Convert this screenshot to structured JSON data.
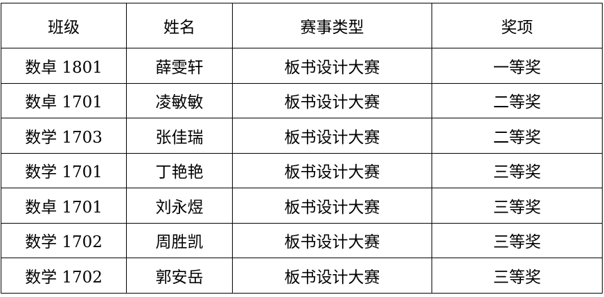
{
  "table": {
    "headers": [
      "班级",
      "姓名",
      "赛事类型",
      "奖项"
    ],
    "rows": [
      [
        "数卓 1801",
        "薛雯轩",
        "板书设计大赛",
        "一等奖"
      ],
      [
        "数卓 1701",
        "凌敏敏",
        "板书设计大赛",
        "二等奖"
      ],
      [
        "数学 1703",
        "张佳瑞",
        "板书设计大赛",
        "二等奖"
      ],
      [
        "数学 1701",
        "丁艳艳",
        "板书设计大赛",
        "三等奖"
      ],
      [
        "数卓 1701",
        "刘永煜",
        "板书设计大赛",
        "三等奖"
      ],
      [
        "数学 1702",
        "周胜凯",
        "板书设计大赛",
        "三等奖"
      ],
      [
        "数学 1702",
        "郭安岳",
        "板书设计大赛",
        "三等奖"
      ]
    ]
  }
}
